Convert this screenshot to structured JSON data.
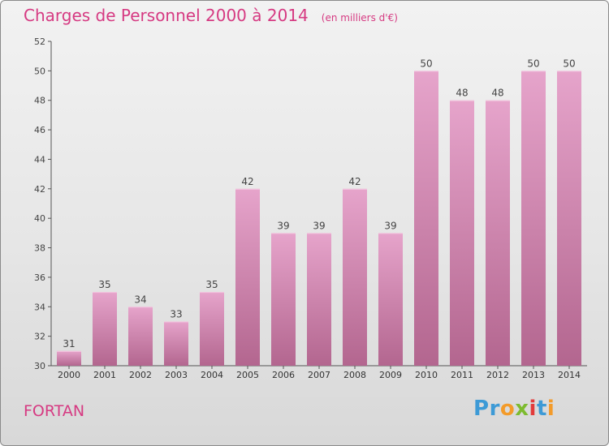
{
  "chart_data": {
    "type": "bar",
    "title": "Charges de Personnel 2000 à 2014",
    "subtitle": "(en milliers d'€)",
    "categories": [
      "2000",
      "2001",
      "2002",
      "2003",
      "2004",
      "2005",
      "2006",
      "2007",
      "2008",
      "2009",
      "2010",
      "2011",
      "2012",
      "2013",
      "2014"
    ],
    "values": [
      31,
      35,
      34,
      33,
      35,
      42,
      39,
      39,
      42,
      39,
      50,
      48,
      48,
      50,
      50
    ],
    "ylim": [
      30,
      52
    ],
    "yticks": [
      30,
      32,
      34,
      36,
      38,
      40,
      42,
      44,
      46,
      48,
      50,
      52
    ],
    "grid": false,
    "bar_color": "#d98ab6"
  },
  "footer": {
    "commune": "FORTAN",
    "logo_letters": [
      {
        "ch": "P",
        "color": "#3d9ad6"
      },
      {
        "ch": "r",
        "color": "#3d9ad6"
      },
      {
        "ch": "o",
        "color": "#f39b2a"
      },
      {
        "ch": "x",
        "color": "#7dbb2f"
      },
      {
        "ch": "i",
        "color": "#e23b3b"
      },
      {
        "ch": "t",
        "color": "#3d9ad6"
      },
      {
        "ch": "i",
        "color": "#f39b2a"
      }
    ]
  }
}
